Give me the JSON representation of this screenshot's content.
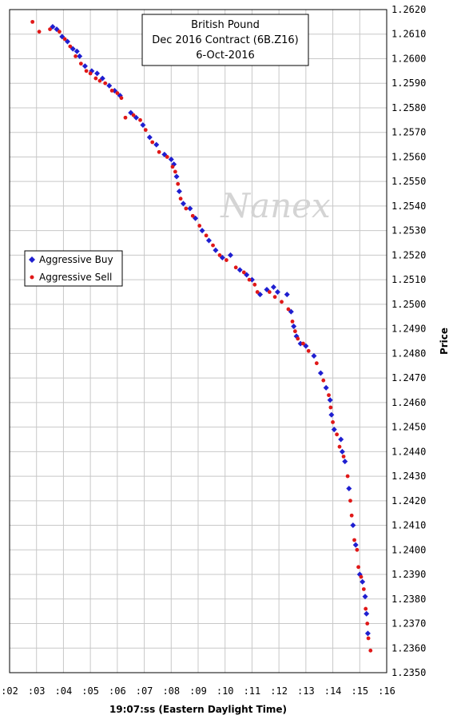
{
  "chart_data": {
    "type": "scatter",
    "title": [
      "British Pound",
      "Dec 2016 Contract (6B.Z16)",
      "6-Oct-2016"
    ],
    "xlabel": "19:07:ss (Eastern Daylight Time)",
    "ylabel": "Price",
    "xlim": [
      2,
      16
    ],
    "ylim": [
      1.235,
      1.262
    ],
    "x_ticks": [
      2,
      3,
      4,
      5,
      6,
      7,
      8,
      9,
      10,
      11,
      12,
      13,
      14,
      15,
      16
    ],
    "x_tick_labels": [
      ":02",
      ":03",
      ":04",
      ":05",
      ":06",
      ":07",
      ":08",
      ":09",
      ":10",
      ":11",
      ":12",
      ":13",
      ":14",
      ":15",
      ":16"
    ],
    "y_ticks": [
      1.235,
      1.236,
      1.237,
      1.238,
      1.239,
      1.24,
      1.241,
      1.242,
      1.243,
      1.244,
      1.245,
      1.246,
      1.247,
      1.248,
      1.249,
      1.25,
      1.251,
      1.252,
      1.253,
      1.254,
      1.255,
      1.256,
      1.257,
      1.258,
      1.259,
      1.26,
      1.261,
      1.262
    ],
    "y_tick_labels": [
      "1.2350",
      "1.2360",
      "1.2370",
      "1.2380",
      "1.2390",
      "1.2400",
      "1.2410",
      "1.2420",
      "1.2430",
      "1.2440",
      "1.2450",
      "1.2460",
      "1.2470",
      "1.2480",
      "1.2490",
      "1.2500",
      "1.2510",
      "1.2520",
      "1.2530",
      "1.2540",
      "1.2550",
      "1.2560",
      "1.2570",
      "1.2580",
      "1.2590",
      "1.2600",
      "1.2610",
      "1.2620"
    ],
    "grid": true,
    "legend_position": "left-middle",
    "watermark": "Nanex",
    "series": [
      {
        "name": "Aggressive Buy",
        "color": "#1f1fd0",
        "marker": "diamond",
        "points": [
          [
            3.6,
            1.2613
          ],
          [
            3.75,
            1.2612
          ],
          [
            3.95,
            1.2609
          ],
          [
            4.15,
            1.2607
          ],
          [
            4.35,
            1.2604
          ],
          [
            4.5,
            1.2603
          ],
          [
            4.6,
            1.2601
          ],
          [
            4.8,
            1.2597
          ],
          [
            5.05,
            1.2595
          ],
          [
            5.25,
            1.2594
          ],
          [
            5.45,
            1.2592
          ],
          [
            5.7,
            1.2589
          ],
          [
            5.9,
            1.2587
          ],
          [
            6.1,
            1.2585
          ],
          [
            6.5,
            1.2578
          ],
          [
            6.7,
            1.2576
          ],
          [
            6.95,
            1.2573
          ],
          [
            7.2,
            1.2568
          ],
          [
            7.45,
            1.2565
          ],
          [
            7.75,
            1.2561
          ],
          [
            8.0,
            1.2559
          ],
          [
            8.1,
            1.2557
          ],
          [
            8.2,
            1.2552
          ],
          [
            8.3,
            1.2546
          ],
          [
            8.45,
            1.2541
          ],
          [
            8.7,
            1.2539
          ],
          [
            8.9,
            1.2535
          ],
          [
            9.15,
            1.253
          ],
          [
            9.4,
            1.2526
          ],
          [
            9.65,
            1.2522
          ],
          [
            9.9,
            1.2519
          ],
          [
            10.2,
            1.252
          ],
          [
            10.55,
            1.2514
          ],
          [
            10.8,
            1.2512
          ],
          [
            11.0,
            1.251
          ],
          [
            11.3,
            1.2504
          ],
          [
            11.55,
            1.2506
          ],
          [
            11.8,
            1.2507
          ],
          [
            11.95,
            1.2505
          ],
          [
            12.3,
            1.2504
          ],
          [
            12.45,
            1.2497
          ],
          [
            12.55,
            1.2491
          ],
          [
            12.65,
            1.2487
          ],
          [
            12.8,
            1.2484
          ],
          [
            13.0,
            1.2483
          ],
          [
            13.3,
            1.2479
          ],
          [
            13.55,
            1.2472
          ],
          [
            13.75,
            1.2466
          ],
          [
            13.9,
            1.2461
          ],
          [
            13.95,
            1.2455
          ],
          [
            14.05,
            1.2449
          ],
          [
            14.3,
            1.2445
          ],
          [
            14.35,
            1.244
          ],
          [
            14.45,
            1.2436
          ],
          [
            14.6,
            1.2425
          ],
          [
            14.75,
            1.241
          ],
          [
            14.85,
            1.2402
          ],
          [
            15.0,
            1.239
          ],
          [
            15.1,
            1.2387
          ],
          [
            15.2,
            1.2381
          ],
          [
            15.25,
            1.2374
          ],
          [
            15.3,
            1.2366
          ]
        ]
      },
      {
        "name": "Aggressive Sell",
        "color": "#e01818",
        "marker": "dot",
        "points": [
          [
            2.85,
            1.2615
          ],
          [
            3.1,
            1.2611
          ],
          [
            3.5,
            1.2612
          ],
          [
            3.85,
            1.2611
          ],
          [
            4.05,
            1.2608
          ],
          [
            4.25,
            1.2605
          ],
          [
            4.45,
            1.2601
          ],
          [
            4.65,
            1.2598
          ],
          [
            4.85,
            1.2595
          ],
          [
            5.0,
            1.2594
          ],
          [
            5.2,
            1.2592
          ],
          [
            5.35,
            1.2591
          ],
          [
            5.55,
            1.259
          ],
          [
            5.8,
            1.2587
          ],
          [
            6.0,
            1.2586
          ],
          [
            6.15,
            1.2584
          ],
          [
            6.3,
            1.2576
          ],
          [
            6.6,
            1.2577
          ],
          [
            6.85,
            1.2575
          ],
          [
            7.05,
            1.2571
          ],
          [
            7.3,
            1.2566
          ],
          [
            7.55,
            1.2562
          ],
          [
            7.85,
            1.256
          ],
          [
            8.05,
            1.2556
          ],
          [
            8.15,
            1.2554
          ],
          [
            8.25,
            1.2549
          ],
          [
            8.35,
            1.2543
          ],
          [
            8.55,
            1.2539
          ],
          [
            8.8,
            1.2536
          ],
          [
            9.05,
            1.2532
          ],
          [
            9.3,
            1.2528
          ],
          [
            9.55,
            1.2524
          ],
          [
            9.8,
            1.252
          ],
          [
            10.05,
            1.2518
          ],
          [
            10.4,
            1.2515
          ],
          [
            10.7,
            1.2513
          ],
          [
            10.9,
            1.251
          ],
          [
            11.1,
            1.2508
          ],
          [
            11.2,
            1.2505
          ],
          [
            11.65,
            1.2505
          ],
          [
            11.85,
            1.2503
          ],
          [
            12.1,
            1.2501
          ],
          [
            12.35,
            1.2498
          ],
          [
            12.5,
            1.2493
          ],
          [
            12.6,
            1.2489
          ],
          [
            12.7,
            1.2486
          ],
          [
            12.9,
            1.2484
          ],
          [
            13.1,
            1.2481
          ],
          [
            13.4,
            1.2476
          ],
          [
            13.65,
            1.2469
          ],
          [
            13.85,
            1.2463
          ],
          [
            13.92,
            1.2458
          ],
          [
            14.0,
            1.2452
          ],
          [
            14.15,
            1.2447
          ],
          [
            14.25,
            1.2442
          ],
          [
            14.4,
            1.2438
          ],
          [
            14.55,
            1.243
          ],
          [
            14.65,
            1.242
          ],
          [
            14.7,
            1.2414
          ],
          [
            14.8,
            1.2404
          ],
          [
            14.9,
            1.24
          ],
          [
            14.95,
            1.2393
          ],
          [
            15.05,
            1.2389
          ],
          [
            15.15,
            1.2384
          ],
          [
            15.22,
            1.2376
          ],
          [
            15.28,
            1.237
          ],
          [
            15.32,
            1.2364
          ],
          [
            15.4,
            1.2359
          ]
        ]
      }
    ]
  }
}
